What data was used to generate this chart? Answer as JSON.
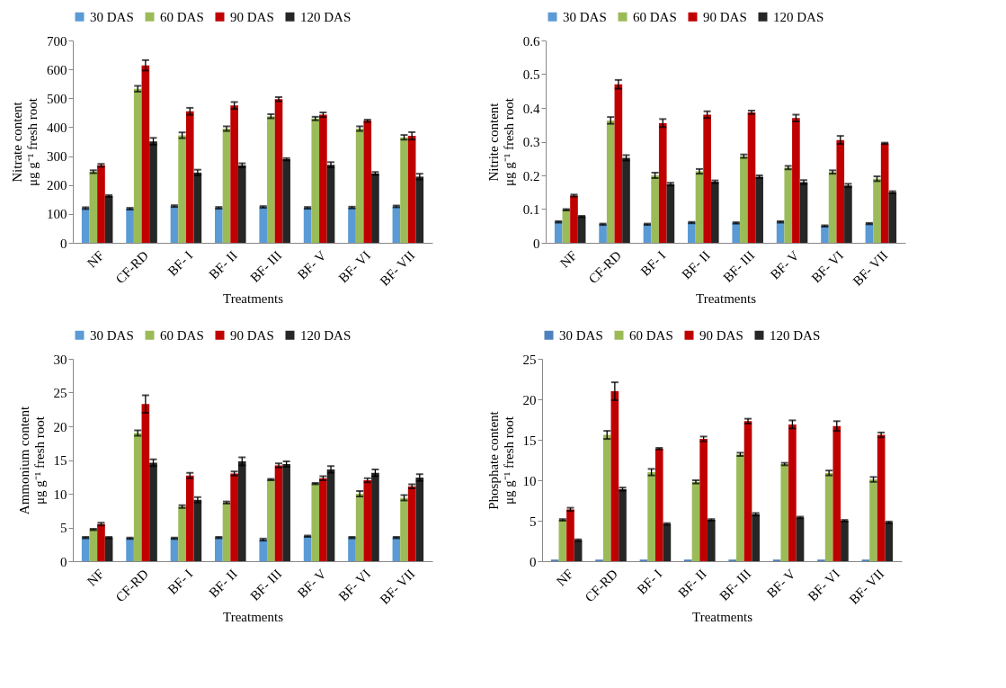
{
  "chart_data": [
    {
      "type": "bar",
      "xlabel": "Treatments",
      "ylabel": "Nitrate  content\nμg g⁻¹ fresh root",
      "categories": [
        "NF",
        "CF-RD",
        "BF- I",
        "BF- II",
        "BF- III",
        "BF- V",
        "BF- VI",
        "BF- VII"
      ],
      "ylim": [
        0,
        700
      ],
      "yticks": [
        0,
        100,
        200,
        300,
        400,
        500,
        600,
        700
      ],
      "legend": "top",
      "grid": false,
      "series": [
        {
          "name": "30 DAS",
          "color": "#5b9bd5",
          "values": [
            120,
            118,
            127,
            121,
            124,
            121,
            122,
            126
          ],
          "errors": [
            3,
            3,
            3,
            3,
            3,
            3,
            3,
            3
          ]
        },
        {
          "name": "60 DAS",
          "color": "#9bbb59",
          "values": [
            246,
            533,
            372,
            395,
            438,
            430,
            395,
            365
          ],
          "errors": [
            5,
            10,
            10,
            8,
            7,
            6,
            8,
            8
          ]
        },
        {
          "name": "90 DAS",
          "color": "#c00000",
          "values": [
            268,
            614,
            455,
            475,
            497,
            443,
            422,
            370
          ],
          "errors": [
            5,
            18,
            12,
            12,
            7,
            8,
            4,
            13
          ]
        },
        {
          "name": "120 DAS",
          "color": "#262626",
          "values": [
            162,
            351,
            243,
            268,
            289,
            270,
            240,
            229
          ],
          "errors": [
            3,
            12,
            10,
            7,
            4,
            9,
            5,
            10
          ]
        }
      ]
    },
    {
      "type": "bar",
      "xlabel": "Treatments",
      "ylabel": "Nitrite content\nμg g⁻¹ fresh root",
      "categories": [
        "NF",
        "CF-RD",
        "BF- I",
        "BF- II",
        "BF- III",
        "BF- V",
        "BF- VI",
        "BF- VII"
      ],
      "ylim": [
        0,
        0.6
      ],
      "yticks": [
        0,
        0.1,
        0.2,
        0.3,
        0.4,
        0.5,
        0.6
      ],
      "legend": "top",
      "grid": false,
      "series": [
        {
          "name": "30 DAS",
          "color": "#5b9bd5",
          "values": [
            0.062,
            0.055,
            0.055,
            0.06,
            0.059,
            0.062,
            0.05,
            0.057
          ],
          "errors": [
            0.002,
            0.002,
            0.002,
            0.002,
            0.002,
            0.002,
            0.002,
            0.002
          ]
        },
        {
          "name": "60 DAS",
          "color": "#9bbb59",
          "values": [
            0.098,
            0.363,
            0.2,
            0.212,
            0.257,
            0.223,
            0.21,
            0.19
          ],
          "errors": [
            0.002,
            0.01,
            0.008,
            0.007,
            0.005,
            0.005,
            0.005,
            0.007
          ]
        },
        {
          "name": "90 DAS",
          "color": "#c00000",
          "values": [
            0.14,
            0.47,
            0.355,
            0.38,
            0.387,
            0.37,
            0.305,
            0.295
          ],
          "errors": [
            0.003,
            0.013,
            0.012,
            0.01,
            0.005,
            0.01,
            0.012,
            0.002
          ]
        },
        {
          "name": "120 DAS",
          "color": "#262626",
          "values": [
            0.078,
            0.252,
            0.174,
            0.181,
            0.196,
            0.18,
            0.17,
            0.15
          ],
          "errors": [
            0.002,
            0.008,
            0.004,
            0.004,
            0.004,
            0.006,
            0.005,
            0.003
          ]
        }
      ]
    },
    {
      "type": "bar",
      "xlabel": "Treatments",
      "ylabel": "Ammonium content\nμg g⁻¹ fresh root",
      "categories": [
        "NF",
        "CF-RD",
        "BF- I",
        "BF- II",
        "BF- III",
        "BF- V",
        "BF- VI",
        "BF- VII"
      ],
      "ylim": [
        0,
        30
      ],
      "yticks": [
        0,
        5,
        10,
        15,
        20,
        25,
        30
      ],
      "legend": "top",
      "grid": false,
      "series": [
        {
          "name": "30 DAS",
          "color": "#5b9bd5",
          "values": [
            3.5,
            3.4,
            3.4,
            3.5,
            3.2,
            3.7,
            3.5,
            3.5
          ],
          "errors": [
            0.1,
            0.1,
            0.1,
            0.1,
            0.15,
            0.1,
            0.1,
            0.1
          ]
        },
        {
          "name": "60 DAS",
          "color": "#9bbb59",
          "values": [
            4.7,
            19.0,
            8.1,
            8.7,
            12.1,
            11.5,
            10.0,
            9.4
          ],
          "errors": [
            0.1,
            0.4,
            0.2,
            0.15,
            0.1,
            0.1,
            0.4,
            0.4
          ]
        },
        {
          "name": "90 DAS",
          "color": "#c00000",
          "values": [
            5.5,
            23.3,
            12.7,
            13.0,
            14.2,
            12.3,
            12.0,
            11.1
          ],
          "errors": [
            0.2,
            1.3,
            0.4,
            0.3,
            0.3,
            0.3,
            0.3,
            0.3
          ]
        },
        {
          "name": "120 DAS",
          "color": "#262626",
          "values": [
            3.5,
            14.6,
            9.1,
            14.8,
            14.4,
            13.6,
            13.1,
            12.4
          ],
          "errors": [
            0.1,
            0.5,
            0.4,
            0.6,
            0.4,
            0.5,
            0.5,
            0.5
          ]
        }
      ]
    },
    {
      "type": "bar",
      "xlabel": "Treatments",
      "ylabel": "Phosphate  content\nμg g⁻¹ fresh root",
      "categories": [
        "NF",
        "CF-RD",
        "BF- I",
        "BF- II",
        "BF- III",
        "BF- V",
        "BF- VI",
        "BF- VII"
      ],
      "ylim": [
        0,
        25
      ],
      "yticks": [
        0,
        5,
        10,
        15,
        20,
        25
      ],
      "legend": "top",
      "grid": false,
      "series": [
        {
          "name": "30 DAS",
          "color": "#4f81bd",
          "values": [
            0.2,
            0.2,
            0.2,
            0.2,
            0.2,
            0.2,
            0.2,
            0.2
          ]
        },
        {
          "name": "60 DAS",
          "color": "#9bbb59",
          "values": [
            5.1,
            15.6,
            11.0,
            9.8,
            13.2,
            12.0,
            10.9,
            10.1
          ],
          "errors": [
            0.1,
            0.5,
            0.4,
            0.2,
            0.2,
            0.15,
            0.3,
            0.3
          ]
        },
        {
          "name": "90 DAS",
          "color": "#c00000",
          "values": [
            6.4,
            21.0,
            13.9,
            15.1,
            17.3,
            16.9,
            16.7,
            15.6
          ],
          "errors": [
            0.2,
            1.1,
            0.1,
            0.3,
            0.3,
            0.5,
            0.6,
            0.3
          ]
        },
        {
          "name": "120 DAS",
          "color": "#262626",
          "values": [
            2.6,
            8.9,
            4.6,
            5.1,
            5.8,
            5.4,
            5.0,
            4.8
          ],
          "errors": [
            0.1,
            0.2,
            0.1,
            0.1,
            0.15,
            0.1,
            0.1,
            0.1
          ]
        }
      ]
    }
  ]
}
